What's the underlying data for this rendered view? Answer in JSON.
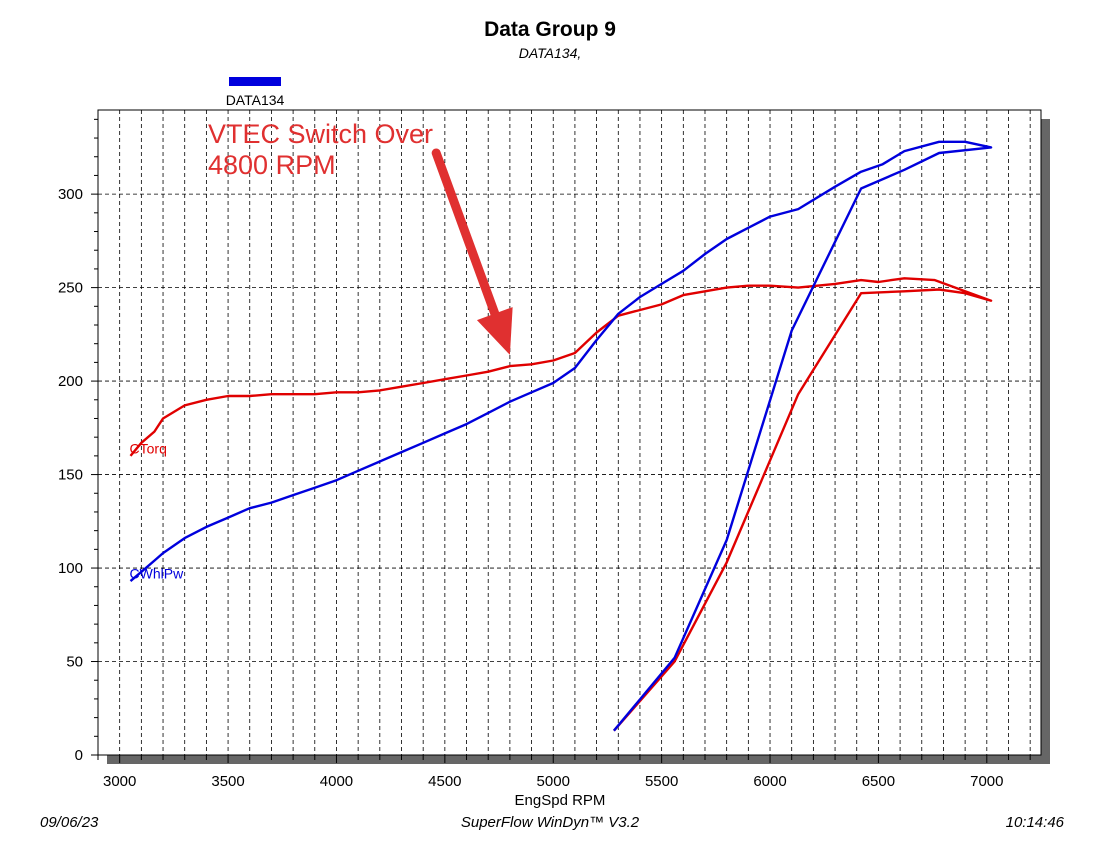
{
  "header": {
    "title": "Data Group 9",
    "subtitle": "DATA134,"
  },
  "footer": {
    "date": "09/06/23",
    "software": "SuperFlow WinDyn™ V3.2",
    "time": "10:14:46"
  },
  "annotation": {
    "line1": "VTEC Switch Over",
    "line2": "4800 RPM",
    "color": "#e03030",
    "arrow_from": [
      4460,
      322
    ],
    "arrow_to": [
      4800,
      214
    ]
  },
  "chart_data": {
    "type": "line",
    "title": "Data Group 9",
    "subtitle": "DATA134,",
    "xlabel": "EngSpd RPM",
    "ylabel": "",
    "xlim": [
      2900,
      7250
    ],
    "ylim": [
      0,
      345
    ],
    "x_ticks": [
      "3000",
      "3500",
      "4000",
      "4500",
      "5000",
      "5500",
      "6000",
      "6500",
      "7000"
    ],
    "y_ticks": [
      "0",
      "50",
      "100",
      "150",
      "200",
      "250",
      "300"
    ],
    "grid": true,
    "legend": {
      "position": "top-left",
      "entries": [
        {
          "label": "DATA134",
          "color": "#0000dd"
        }
      ]
    },
    "series": [
      {
        "name": "CTorq",
        "color": "#e00000",
        "label_at": [
          3050,
          164
        ],
        "x": [
          5280,
          5560,
          5800,
          6130,
          6420,
          6620,
          6780,
          6900,
          7020,
          6900,
          6760,
          6620,
          6560,
          6500,
          6420,
          6300,
          6130,
          6000,
          5900,
          5800,
          5700,
          5600,
          5500,
          5400,
          5300,
          5200,
          5100,
          5000,
          4900,
          4800,
          4700,
          4600,
          4500,
          4400,
          4300,
          4200,
          4100,
          4000,
          3900,
          3800,
          3700,
          3600,
          3500,
          3400,
          3300,
          3200,
          3160,
          3100,
          3050
        ],
        "values": [
          13,
          50,
          103,
          193,
          247,
          248,
          249,
          247,
          243,
          248,
          254,
          255,
          254,
          253,
          254,
          252,
          250,
          251,
          251,
          250,
          248,
          246,
          241,
          238,
          235,
          226,
          215,
          211,
          209,
          208,
          205,
          203,
          201,
          199,
          197,
          195,
          194,
          194,
          193,
          193,
          193,
          192,
          192,
          190,
          187,
          180,
          173,
          167,
          160
        ]
      },
      {
        "name": "CWhlPw",
        "color": "#0000dd",
        "label_at": [
          3050,
          97
        ],
        "x": [
          5280,
          5560,
          5800,
          6100,
          6420,
          6620,
          6780,
          7020,
          6900,
          6780,
          6620,
          6520,
          6420,
          6300,
          6130,
          6000,
          5900,
          5800,
          5700,
          5600,
          5500,
          5400,
          5300,
          5200,
          5100,
          5000,
          4900,
          4800,
          4700,
          4600,
          4500,
          4400,
          4300,
          4200,
          4100,
          4000,
          3900,
          3800,
          3700,
          3600,
          3500,
          3400,
          3300,
          3200,
          3160,
          3100,
          3050
        ],
        "values": [
          13,
          52,
          115,
          227,
          303,
          313,
          322,
          325,
          328,
          328,
          323,
          316,
          312,
          304,
          292,
          288,
          282,
          276,
          268,
          259,
          252,
          245,
          236,
          222,
          207,
          199,
          194,
          189,
          183,
          177,
          172,
          167,
          162,
          157,
          152,
          147,
          143,
          139,
          135,
          132,
          127,
          122,
          116,
          108,
          104,
          98,
          93
        ]
      }
    ]
  }
}
